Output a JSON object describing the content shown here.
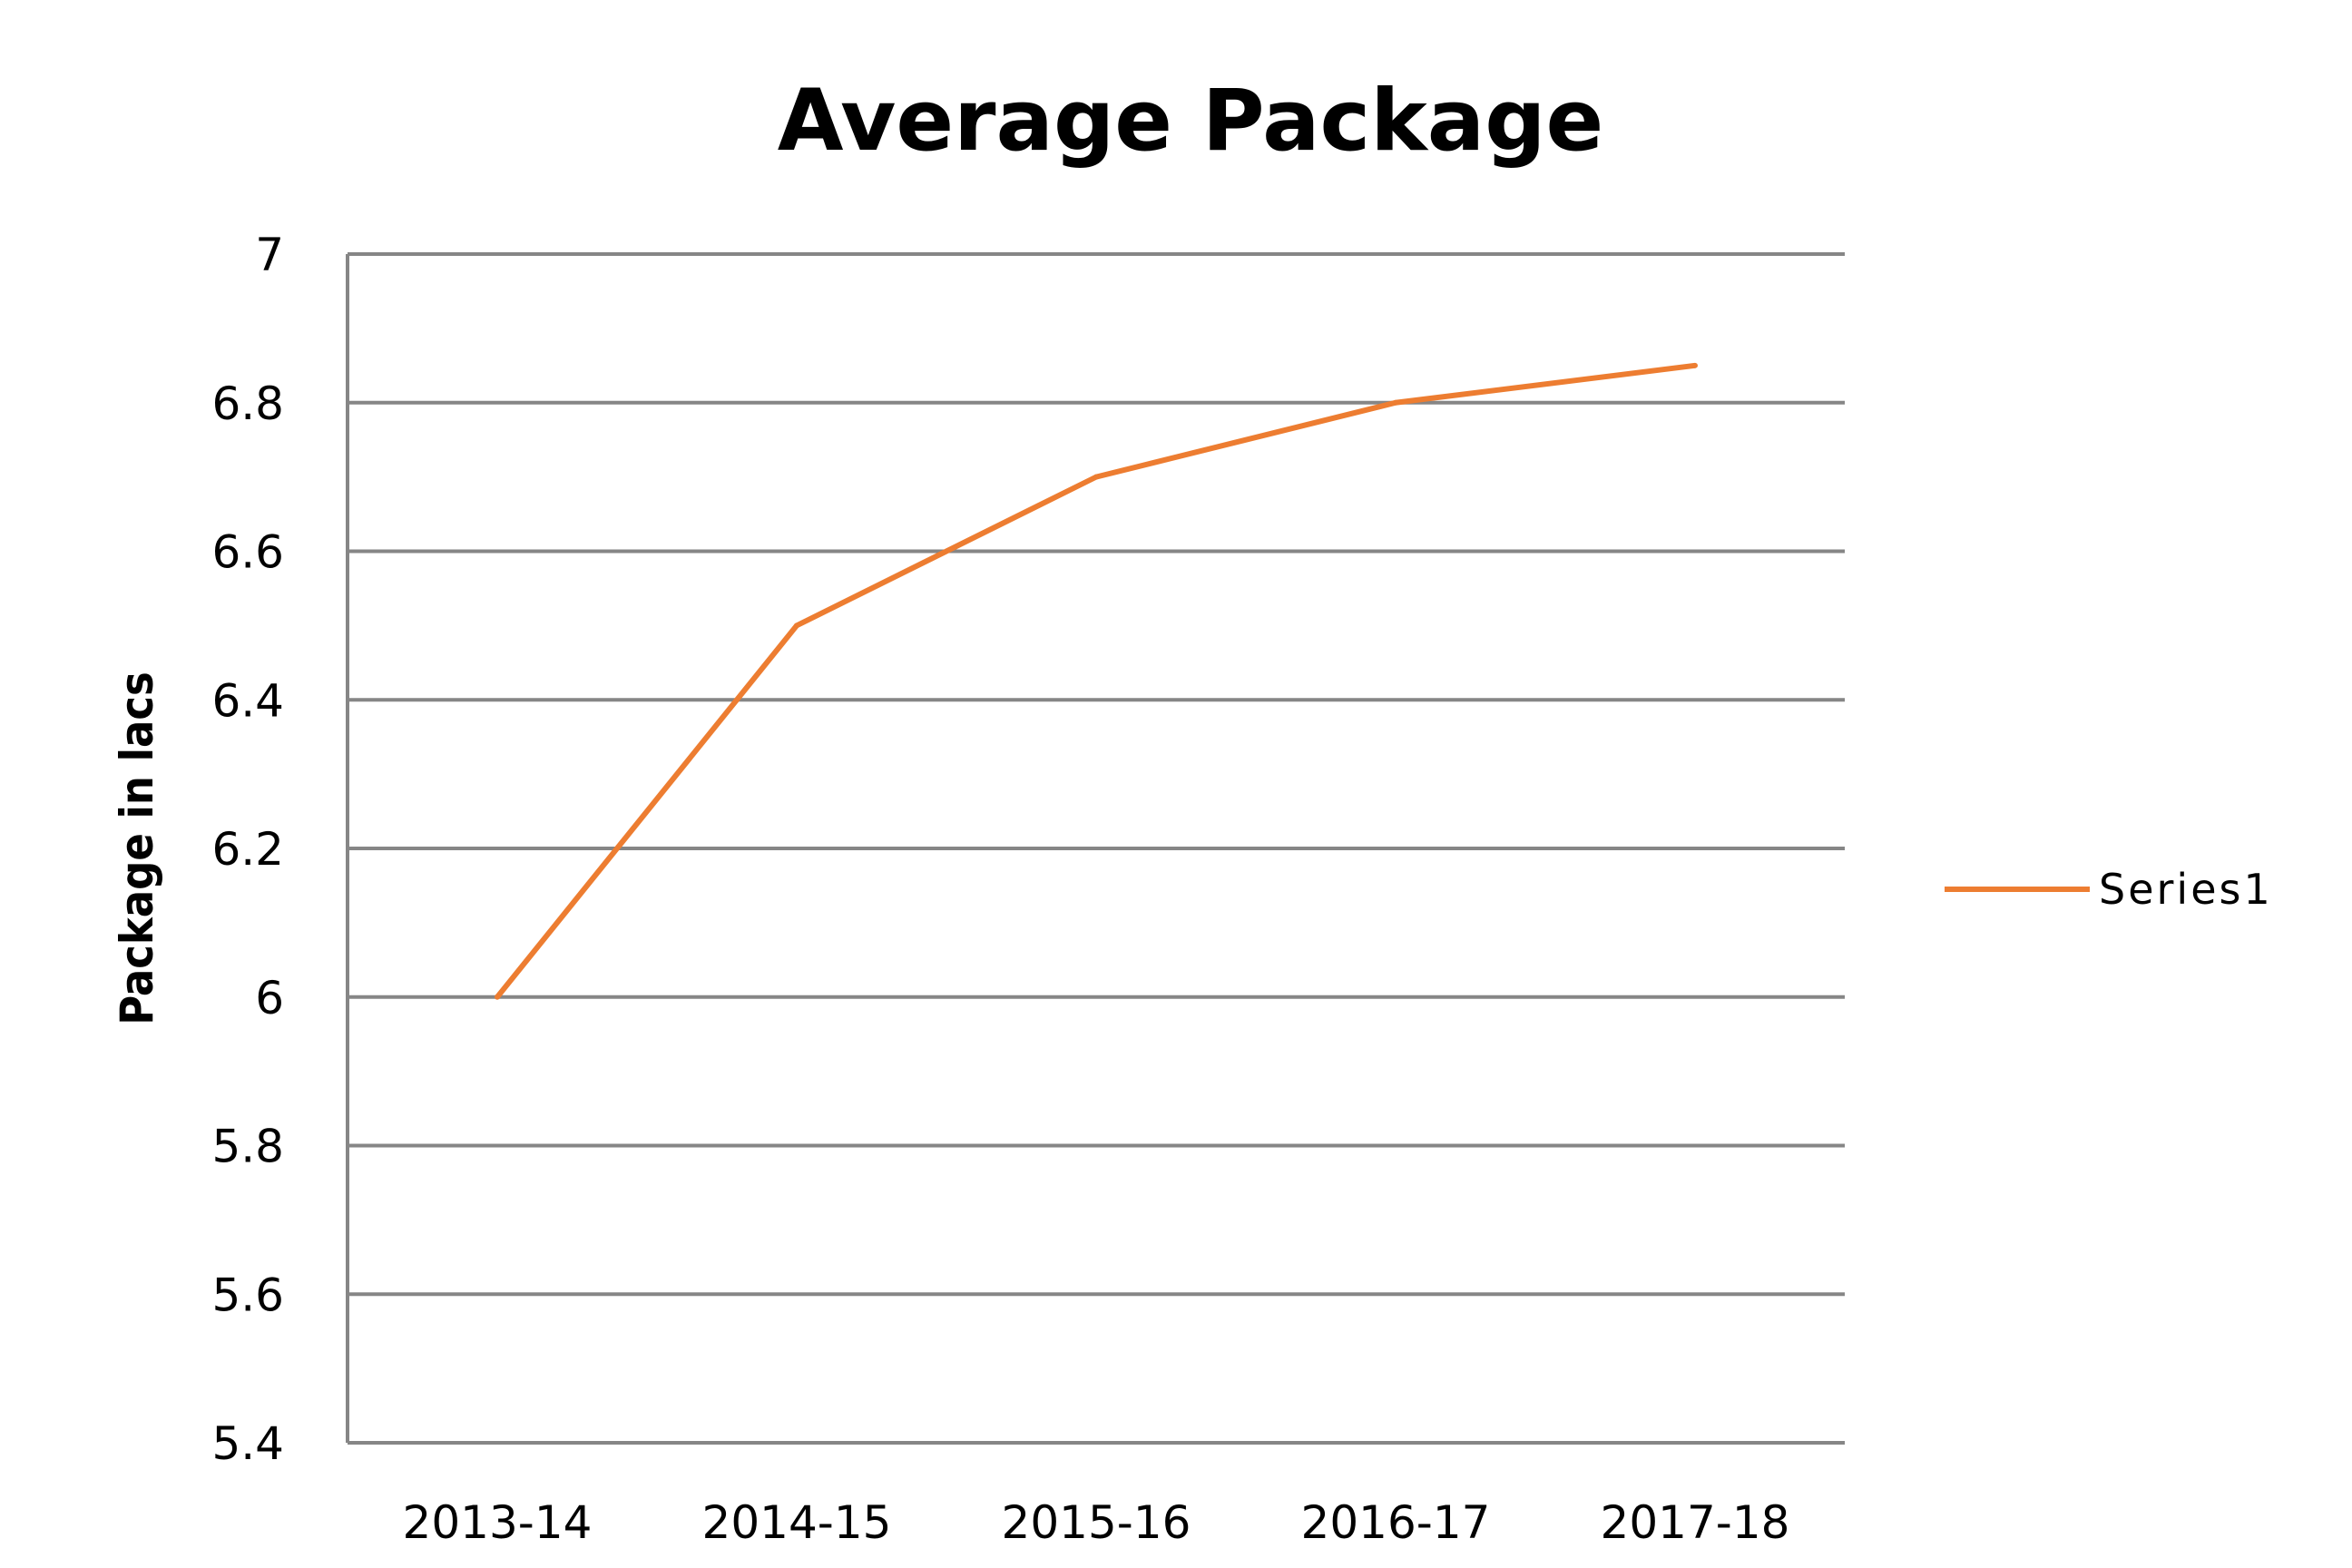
{
  "chart_data": {
    "type": "line",
    "title": "Average Package",
    "xlabel": "",
    "ylabel": "Package in lacs",
    "categories": [
      "2013-14",
      "2014-15",
      "2015-16",
      "2016-17",
      "2017-18"
    ],
    "series": [
      {
        "name": "Series1",
        "values": [
          6.0,
          6.5,
          6.7,
          6.8,
          6.85
        ],
        "color": "#ed7d31"
      }
    ],
    "ylim": [
      5.4,
      7.0
    ],
    "yticks": [
      "5.4",
      "5.6",
      "5.8",
      "6",
      "6.2",
      "6.4",
      "6.6",
      "6.8",
      "7"
    ],
    "grid": true,
    "legend_position": "right",
    "gridline_color": "#868686"
  }
}
